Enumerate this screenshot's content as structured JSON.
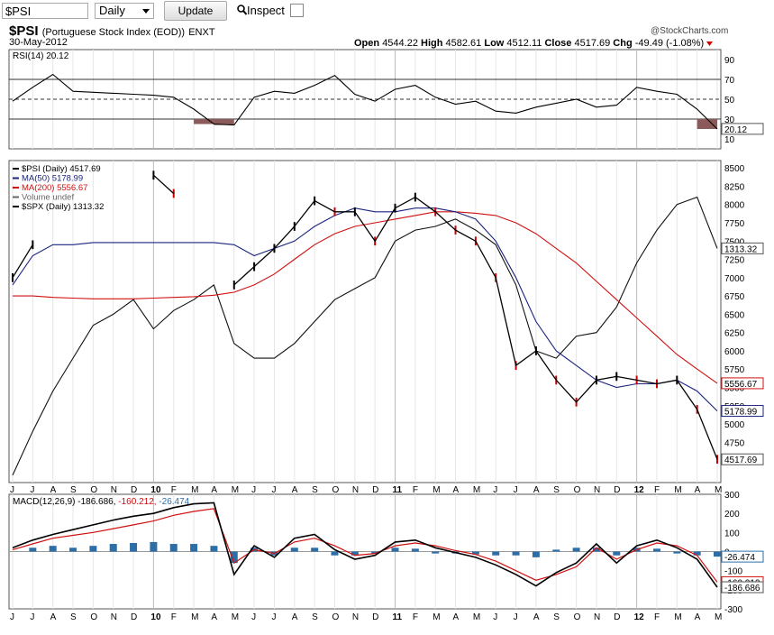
{
  "toolbar": {
    "symbol_value": "$PSI",
    "period_value": "Daily",
    "update_label": "Update",
    "inspect_label": "Inspect"
  },
  "header": {
    "symbol": "$PSI",
    "name": "(Portuguese Stock Index (EOD))",
    "exchange": "ENXT",
    "date": "30-May-2012",
    "brand": "@StockCharts.com",
    "open_label": "Open",
    "open": "4544.22",
    "high_label": "High",
    "high": "4582.61",
    "low_label": "Low",
    "low": "4512.11",
    "close_label": "Close",
    "close": "4517.69",
    "chg_label": "Chg",
    "chg": "-49.49 (-1.08%)"
  },
  "colors": {
    "ma50": "#1a237e",
    "ma200": "#d01010",
    "price": "#000000",
    "down": "#cc0000",
    "macd_hist": "#2e6ea6",
    "rsi_fill": "#8b5a5a"
  },
  "chart_data": [
    {
      "type": "line",
      "panel": "RSI",
      "legend": "RSI(14) 20.12",
      "ylim": [
        0,
        100
      ],
      "ticks": [
        "90",
        "70",
        "50",
        "30",
        "10"
      ],
      "reference_lines": [
        70,
        50,
        30
      ],
      "last_value_label": "20.12",
      "x": [
        "2009-06",
        "2009-07",
        "2009-08",
        "2009-09",
        "2009-10",
        "2009-11",
        "2009-12",
        "2010-01",
        "2010-02",
        "2010-03",
        "2010-04",
        "2010-05",
        "2010-06",
        "2010-07",
        "2010-08",
        "2010-09",
        "2010-10",
        "2010-11",
        "2010-12",
        "2011-01",
        "2011-02",
        "2011-03",
        "2011-04",
        "2011-05",
        "2011-06",
        "2011-07",
        "2011-08",
        "2011-09",
        "2011-10",
        "2011-11",
        "2011-12",
        "2012-01",
        "2012-02",
        "2012-03",
        "2012-04",
        "2012-05"
      ],
      "values": [
        48,
        62,
        75,
        58,
        57,
        56,
        55,
        54,
        52,
        40,
        25,
        24,
        52,
        58,
        56,
        64,
        74,
        55,
        48,
        60,
        64,
        52,
        45,
        48,
        38,
        36,
        42,
        46,
        50,
        42,
        44,
        62,
        58,
        55,
        40,
        20
      ]
    },
    {
      "type": "line",
      "panel": "Price",
      "series": [
        {
          "name": "$PSI (Daily) 4517.69",
          "values": [
            7000,
            7450,
            null,
            null,
            null,
            null,
            null,
            8400,
            8150,
            null,
            null,
            6900,
            7150,
            7400,
            7700,
            8050,
            7900,
            7900,
            7500,
            7950,
            8100,
            7900,
            7650,
            7500,
            7000,
            5800,
            6000,
            5600,
            5300,
            5600,
            5650,
            5600,
            5550,
            5600,
            5200,
            4517.69
          ]
        },
        {
          "name": "MA(50) 5178.99",
          "values": [
            6900,
            7300,
            7450,
            7450,
            7480,
            7480,
            7480,
            7480,
            7480,
            7480,
            7480,
            7450,
            7300,
            7400,
            7500,
            7700,
            7850,
            7950,
            7900,
            7900,
            7950,
            7950,
            7900,
            7800,
            7500,
            7000,
            6400,
            6000,
            5800,
            5600,
            5500,
            5550,
            5550,
            5600,
            5450,
            5178.99
          ]
        },
        {
          "name": "MA(200) 5556.67",
          "values": [
            6750,
            6750,
            6730,
            6720,
            6710,
            6710,
            6710,
            6720,
            6730,
            6740,
            6760,
            6800,
            6900,
            7050,
            7250,
            7450,
            7600,
            7700,
            7750,
            7800,
            7850,
            7900,
            7900,
            7880,
            7850,
            7750,
            7600,
            7400,
            7200,
            6950,
            6700,
            6450,
            6200,
            5950,
            5750,
            5556.67
          ]
        },
        {
          "name": "$SPX (Daily) 1313.32",
          "values": [
            4300,
            4900,
            5450,
            5900,
            6350,
            6500,
            6700,
            6300,
            6550,
            6700,
            6900,
            6100,
            5900,
            5900,
            6100,
            6400,
            6700,
            6850,
            7000,
            7500,
            7650,
            7700,
            7800,
            7650,
            7450,
            6900,
            6000,
            5900,
            6200,
            6250,
            6600,
            7200,
            7650,
            8000,
            8100,
            7400
          ]
        }
      ],
      "legend_extra": "Volume undef",
      "ylim": [
        4200,
        8600
      ],
      "ticks": [
        "8500",
        "8250",
        "8000",
        "7750",
        "7500",
        "7250",
        "7000",
        "6750",
        "6500",
        "6250",
        "6000",
        "5750",
        "5500",
        "5250",
        "5000",
        "4750",
        "4500"
      ],
      "last_labels": {
        "spx": "1313.32",
        "ma200": "5556.67",
        "ma50": "5178.99",
        "price": "4517.69"
      }
    },
    {
      "type": "line",
      "panel": "MACD",
      "legend": {
        "prefix": "MACD(12,26,9)",
        "macd": "-186.686",
        "signal": "-160.212",
        "hist": "-26.474"
      },
      "ylim": [
        -300,
        300
      ],
      "ticks": [
        "300",
        "200",
        "100",
        "0",
        "-100",
        "-200",
        "-300"
      ],
      "last_labels": {
        "hist": "-26.474",
        "signal": "-160.212",
        "macd": "-186.686"
      },
      "series": [
        {
          "name": "MACD",
          "values": [
            20,
            60,
            90,
            115,
            140,
            165,
            185,
            200,
            230,
            250,
            255,
            -120,
            30,
            -30,
            70,
            90,
            10,
            -40,
            -20,
            50,
            60,
            20,
            -5,
            -30,
            -70,
            -120,
            -180,
            -110,
            -60,
            40,
            -60,
            30,
            60,
            20,
            -40,
            -186.686
          ]
        },
        {
          "name": "Signal",
          "values": [
            10,
            40,
            70,
            85,
            100,
            120,
            140,
            160,
            190,
            210,
            225,
            -60,
            10,
            -10,
            50,
            70,
            30,
            -20,
            -10,
            30,
            45,
            30,
            5,
            -15,
            -50,
            -100,
            -150,
            -120,
            -80,
            20,
            -40,
            10,
            45,
            30,
            -20,
            -160.212
          ]
        },
        {
          "name": "Hist",
          "values": [
            0,
            20,
            30,
            20,
            30,
            40,
            45,
            50,
            40,
            40,
            30,
            -60,
            20,
            -20,
            20,
            20,
            -20,
            -20,
            -10,
            20,
            15,
            -10,
            -10,
            -15,
            -20,
            -20,
            -30,
            10,
            20,
            20,
            -20,
            20,
            15,
            -10,
            -20,
            -26.474
          ]
        }
      ]
    }
  ],
  "x_axis": {
    "labels": [
      "J",
      "J",
      "A",
      "S",
      "O",
      "N",
      "D",
      "10",
      "F",
      "M",
      "A",
      "M",
      "J",
      "J",
      "A",
      "S",
      "O",
      "N",
      "D",
      "11",
      "F",
      "M",
      "A",
      "M",
      "J",
      "J",
      "A",
      "S",
      "O",
      "N",
      "D",
      "12",
      "F",
      "M",
      "A",
      "M"
    ]
  }
}
